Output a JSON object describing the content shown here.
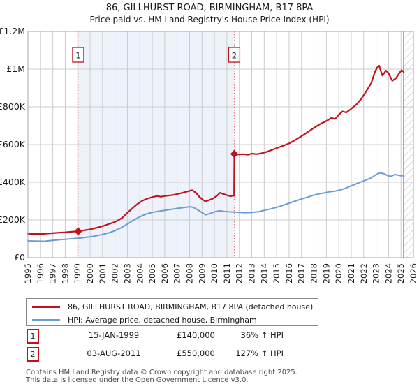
{
  "title": "86, GILLHURST ROAD, BIRMINGHAM, B17 8PA",
  "subtitle": "Price paid vs. HM Land Registry's House Price Index (HPI)",
  "legend": {
    "items": [
      {
        "label": "86, GILLHURST ROAD, BIRMINGHAM, B17 8PA (detached house)",
        "color": "#c1121c"
      },
      {
        "label": "HPI: Average price, detached house, Birmingham",
        "color": "#6b9cd2"
      }
    ]
  },
  "sales": [
    {
      "num": "1",
      "date": "15-JAN-1999",
      "price": "£140,000",
      "hpi": "36% ↑ HPI",
      "year_decimal": 1999.04,
      "value": 140000
    },
    {
      "num": "2",
      "date": "03-AUG-2011",
      "price": "£550,000",
      "hpi": "127% ↑ HPI",
      "year_decimal": 2011.59,
      "value": 550000
    }
  ],
  "footer": {
    "line1": "Contains HM Land Registry data © Crown copyright and database right 2025.",
    "line2": "This data is licensed under the Open Government Licence v3.0."
  },
  "chart_data": {
    "type": "line",
    "title": "86, GILLHURST ROAD, BIRMINGHAM, B17 8PA",
    "subtitle": "Price paid vs. HM Land Registry's House Price Index (HPI)",
    "xlabel": "",
    "ylabel": "",
    "xlim": [
      1995,
      2026
    ],
    "ylim": [
      0,
      1200000
    ],
    "grid": true,
    "legend_position": "bottom",
    "x_ticks": [
      1995,
      1996,
      1997,
      1998,
      1999,
      2000,
      2001,
      2002,
      2003,
      2004,
      2005,
      2006,
      2007,
      2008,
      2009,
      2010,
      2011,
      2012,
      2013,
      2014,
      2015,
      2016,
      2017,
      2018,
      2019,
      2020,
      2021,
      2022,
      2023,
      2024,
      2025,
      2026
    ],
    "y_ticks": [
      {
        "v": 0,
        "label": "£0"
      },
      {
        "v": 200000,
        "label": "£200K"
      },
      {
        "v": 400000,
        "label": "£400K"
      },
      {
        "v": 600000,
        "label": "£600K"
      },
      {
        "v": 800000,
        "label": "£800K"
      },
      {
        "v": 1000000,
        "label": "£1M"
      },
      {
        "v": 1200000,
        "label": "£1.2M"
      }
    ],
    "shaded_region": [
      1999.04,
      2011.59
    ],
    "hatch_region": [
      2025.2,
      2026
    ],
    "colors": {
      "property": "#c1121c",
      "hpi": "#6b9cd2",
      "sale_dashed": "#ea6a6a",
      "shade": "#eef3fb",
      "grid": "#cccccc",
      "border": "#a6a6a6",
      "hatch": "#b9bdc6",
      "hatch_edge": "#8c8c94"
    },
    "series": [
      {
        "name": "86, GILLHURST ROAD, BIRMINGHAM, B17 8PA (detached house)",
        "color": "#c1121c",
        "points": [
          [
            1995.0,
            127000
          ],
          [
            1995.4,
            125500
          ],
          [
            1995.8,
            126500
          ],
          [
            1996.2,
            126000
          ],
          [
            1996.6,
            128000
          ],
          [
            1997.0,
            130000
          ],
          [
            1997.5,
            132500
          ],
          [
            1998.0,
            134500
          ],
          [
            1998.5,
            137500
          ],
          [
            1999.04,
            140000
          ],
          [
            1999.5,
            145000
          ],
          [
            2000.0,
            150000
          ],
          [
            2000.5,
            158000
          ],
          [
            2001.0,
            167000
          ],
          [
            2001.4,
            176000
          ],
          [
            2001.8,
            185000
          ],
          [
            2002.2,
            196000
          ],
          [
            2002.6,
            212000
          ],
          [
            2003.0,
            238000
          ],
          [
            2003.4,
            262000
          ],
          [
            2003.8,
            284000
          ],
          [
            2004.2,
            302000
          ],
          [
            2004.6,
            313000
          ],
          [
            2005.0,
            321000
          ],
          [
            2005.4,
            327000
          ],
          [
            2005.7,
            323000
          ],
          [
            2006.0,
            327000
          ],
          [
            2006.4,
            330000
          ],
          [
            2006.8,
            334000
          ],
          [
            2007.2,
            340000
          ],
          [
            2007.6,
            347000
          ],
          [
            2008.0,
            354000
          ],
          [
            2008.2,
            358000
          ],
          [
            2008.5,
            345000
          ],
          [
            2008.8,
            322000
          ],
          [
            2009.1,
            305000
          ],
          [
            2009.3,
            298000
          ],
          [
            2009.6,
            306000
          ],
          [
            2009.9,
            314000
          ],
          [
            2010.2,
            328000
          ],
          [
            2010.45,
            344000
          ],
          [
            2010.7,
            338000
          ],
          [
            2011.0,
            331000
          ],
          [
            2011.3,
            326000
          ],
          [
            2011.58,
            330000
          ],
          [
            2011.6,
            550000
          ],
          [
            2011.9,
            547000
          ],
          [
            2012.3,
            549000
          ],
          [
            2012.7,
            546000
          ],
          [
            2013.0,
            552000
          ],
          [
            2013.4,
            549000
          ],
          [
            2013.8,
            554000
          ],
          [
            2014.2,
            561000
          ],
          [
            2014.6,
            571000
          ],
          [
            2015.0,
            581000
          ],
          [
            2015.5,
            593000
          ],
          [
            2016.0,
            606000
          ],
          [
            2016.5,
            624000
          ],
          [
            2017.0,
            644000
          ],
          [
            2017.5,
            666000
          ],
          [
            2018.0,
            688000
          ],
          [
            2018.5,
            709000
          ],
          [
            2019.0,
            725000
          ],
          [
            2019.4,
            741000
          ],
          [
            2019.7,
            736000
          ],
          [
            2020.0,
            758000
          ],
          [
            2020.3,
            776000
          ],
          [
            2020.6,
            770000
          ],
          [
            2021.0,
            790000
          ],
          [
            2021.4,
            812000
          ],
          [
            2021.8,
            842000
          ],
          [
            2022.2,
            882000
          ],
          [
            2022.6,
            925000
          ],
          [
            2022.9,
            985000
          ],
          [
            2023.1,
            1010000
          ],
          [
            2023.25,
            1018000
          ],
          [
            2023.5,
            966000
          ],
          [
            2023.8,
            992000
          ],
          [
            2024.0,
            978000
          ],
          [
            2024.3,
            938000
          ],
          [
            2024.6,
            952000
          ],
          [
            2024.9,
            982000
          ],
          [
            2025.05,
            994000
          ],
          [
            2025.2,
            986000
          ]
        ]
      },
      {
        "name": "HPI: Average price, detached house, Birmingham",
        "color": "#6b9cd2",
        "points": [
          [
            1995.0,
            89000
          ],
          [
            1995.5,
            88000
          ],
          [
            1996.0,
            87500
          ],
          [
            1996.3,
            86500
          ],
          [
            1996.7,
            89500
          ],
          [
            1997.0,
            92000
          ],
          [
            1997.5,
            95000
          ],
          [
            1998.0,
            97500
          ],
          [
            1998.5,
            100000
          ],
          [
            1999.04,
            103000
          ],
          [
            1999.5,
            106500
          ],
          [
            2000.0,
            110500
          ],
          [
            2000.5,
            116000
          ],
          [
            2001.0,
            123000
          ],
          [
            2001.5,
            131500
          ],
          [
            2002.0,
            143000
          ],
          [
            2002.5,
            159000
          ],
          [
            2003.0,
            178000
          ],
          [
            2003.5,
            199000
          ],
          [
            2004.0,
            217000
          ],
          [
            2004.5,
            231000
          ],
          [
            2005.0,
            240000
          ],
          [
            2005.5,
            246000
          ],
          [
            2006.0,
            251000
          ],
          [
            2006.5,
            256000
          ],
          [
            2007.0,
            261000
          ],
          [
            2007.5,
            266000
          ],
          [
            2008.0,
            270000
          ],
          [
            2008.3,
            267000
          ],
          [
            2008.7,
            252000
          ],
          [
            2009.0,
            239000
          ],
          [
            2009.3,
            227000
          ],
          [
            2009.6,
            233000
          ],
          [
            2010.0,
            243000
          ],
          [
            2010.4,
            248000
          ],
          [
            2010.8,
            245000
          ],
          [
            2011.2,
            243000
          ],
          [
            2011.59,
            242000
          ],
          [
            2012.0,
            240000
          ],
          [
            2012.4,
            238500
          ],
          [
            2012.8,
            239000
          ],
          [
            2013.2,
            241000
          ],
          [
            2013.6,
            244000
          ],
          [
            2014.0,
            251000
          ],
          [
            2014.5,
            258000
          ],
          [
            2015.0,
            267000
          ],
          [
            2015.5,
            277000
          ],
          [
            2016.0,
            289000
          ],
          [
            2016.5,
            300000
          ],
          [
            2017.0,
            311000
          ],
          [
            2017.5,
            321000
          ],
          [
            2018.0,
            332000
          ],
          [
            2018.4,
            338000
          ],
          [
            2018.8,
            343000
          ],
          [
            2019.2,
            349000
          ],
          [
            2019.6,
            352000
          ],
          [
            2020.0,
            357000
          ],
          [
            2020.5,
            367000
          ],
          [
            2021.0,
            381000
          ],
          [
            2021.5,
            394000
          ],
          [
            2022.0,
            407000
          ],
          [
            2022.5,
            420000
          ],
          [
            2023.0,
            440000
          ],
          [
            2023.3,
            450000
          ],
          [
            2023.6,
            446000
          ],
          [
            2023.9,
            436000
          ],
          [
            2024.2,
            431000
          ],
          [
            2024.5,
            441000
          ],
          [
            2024.8,
            437000
          ],
          [
            2025.05,
            434000
          ],
          [
            2025.2,
            435000
          ]
        ]
      }
    ]
  }
}
